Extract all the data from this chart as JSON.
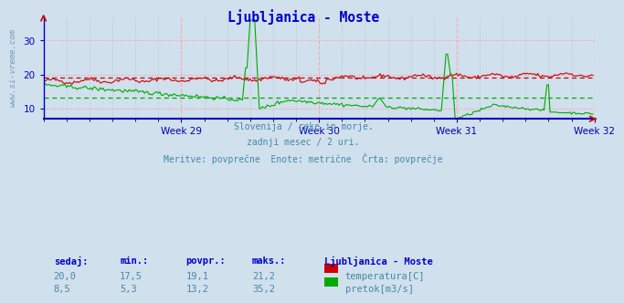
{
  "title": "Ljubljanica - Moste",
  "title_color": "#0000cc",
  "bg_color": "#d0e0ec",
  "grid_color": "#ff9999",
  "axis_color": "#0000cc",
  "tick_color": "#0000aa",
  "ylim": [
    7,
    37
  ],
  "week_ticks": [
    90,
    180,
    270,
    360
  ],
  "week_labels": [
    "Week 29",
    "Week 30",
    "Week 31",
    "Week 32"
  ],
  "temp_avg": 19.1,
  "temp_color": "#cc0000",
  "flow_color": "#00aa00",
  "flow_avg": 13.2,
  "subtitle_lines": [
    "Slovenija / reke in morje.",
    "zadnji mesec / 2 uri.",
    "Meritve: povprečne  Enote: metrične  Črta: povprečje"
  ],
  "subtitle_color": "#4488aa",
  "table_header": [
    "sedaj:",
    "min.:",
    "povpr.:",
    "maks.:",
    "Ljubljanica - Moste"
  ],
  "table_header_color": "#0000cc",
  "table_data": [
    [
      "20,0",
      "17,5",
      "19,1",
      "21,2"
    ],
    [
      "8,5",
      "5,3",
      "13,2",
      "35,2"
    ]
  ],
  "table_data_color": "#4488aa",
  "legend_labels": [
    "temperatura[C]",
    "pretok[m3/s]"
  ],
  "legend_colors": [
    "#cc0000",
    "#00aa00"
  ],
  "watermark": "www.si-vreme.com",
  "watermark_color": "#7799bb",
  "n_points": 360
}
